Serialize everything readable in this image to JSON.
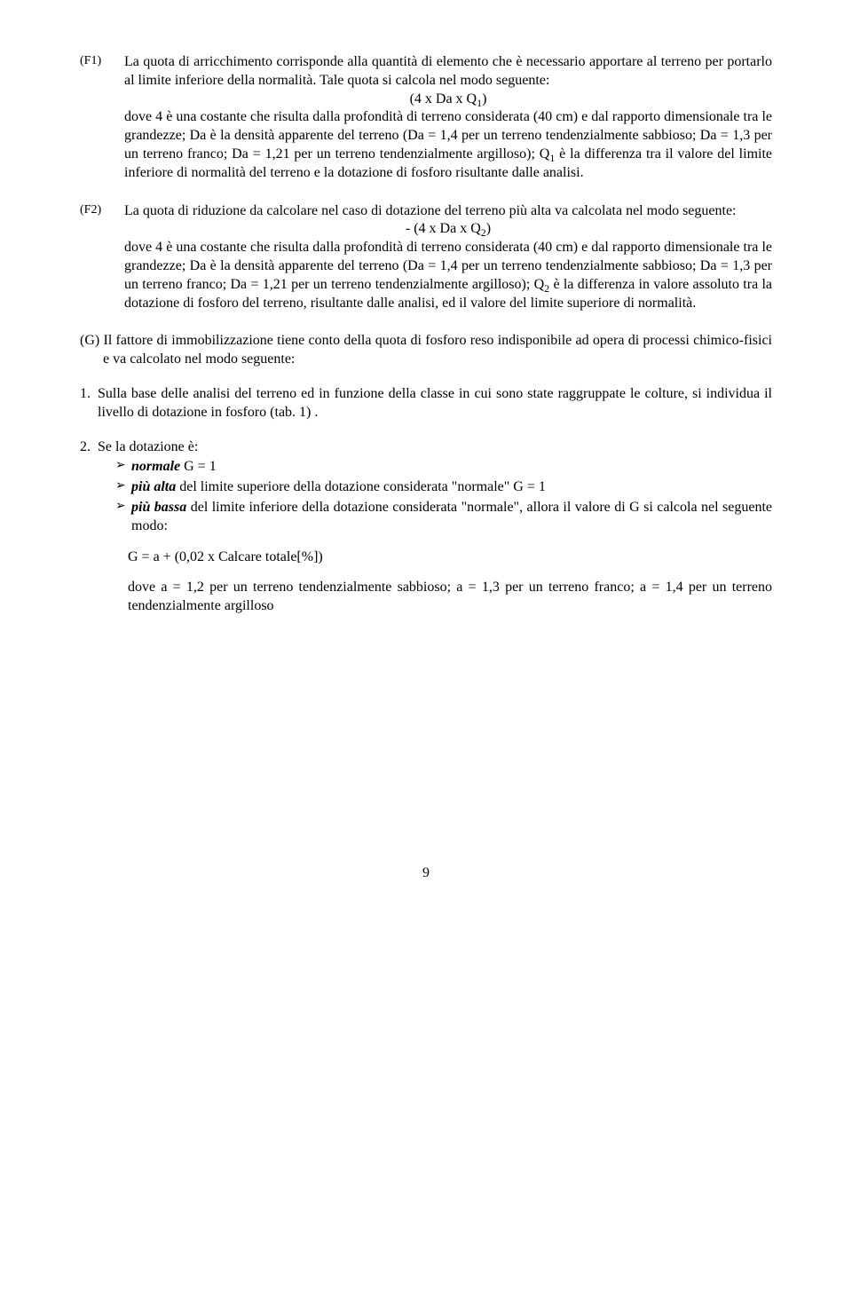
{
  "f1": {
    "label": "(F1)",
    "para1": "La quota di arricchimento corrisponde alla quantità di elemento che è necessario apportare al terreno per portarlo al limite inferiore della normalità. Tale quota si calcola nel modo seguente:",
    "formula_html": "(4 x Da x Q<sub>1</sub>)",
    "para2_html": "dove 4 è una costante che risulta dalla profondità di terreno considerata (40 cm) e dal rapporto dimensionale tra le grandezze; Da è la densità apparente del terreno (Da = 1,4 per un terreno tendenzialmente sabbioso; Da = 1,3 per un terreno franco; Da = 1,21 per un terreno tendenzialmente argilloso); Q<sub>1</sub> è la differenza tra il valore del limite inferiore di normalità del terreno e la dotazione di fosforo risultante dalle analisi."
  },
  "f2": {
    "label": "(F2)",
    "para1": "La quota di riduzione da calcolare nel caso di dotazione del terreno più alta va calcolata nel modo seguente:",
    "formula_html": "- (4 x Da x Q<sub>2</sub>)",
    "para2_html": "dove 4 è una costante che risulta dalla profondità di terreno considerata (40 cm) e dal rapporto dimensionale tra le grandezze; Da è la densità apparente del terreno (Da = 1,4 per un terreno tendenzialmente sabbioso; Da = 1,3 per un terreno franco; Da = 1,21 per un terreno tendenzialmente argilloso); Q<sub>2</sub> è la differenza in valore assoluto tra la dotazione di fosforo del terreno, risultante dalle analisi, ed il valore del limite superiore di normalità."
  },
  "g": {
    "intro": "(G) Il fattore di immobilizzazione tiene conto della quota di fosforo reso indisponibile ad opera di processi chimico-fisici e va calcolato nel modo seguente:",
    "item1": {
      "num": "1.",
      "text": "Sulla base delle analisi del terreno ed in funzione della classe in cui sono state raggruppate le colture, si individua il livello di dotazione in fosforo (tab. 1) ."
    },
    "item2": {
      "num": "2.",
      "lead": "Se la dotazione è:",
      "bullets": [
        {
          "html": "<b><i>normale</i></b> G = 1"
        },
        {
          "html": "<b><i>più alta</i></b> del limite superiore della dotazione considerata \"normale\" G = 1"
        },
        {
          "html": "<b><i>più bassa</i></b> del limite inferiore della dotazione considerata \"normale\", allora il valore di G si calcola nel seguente modo:"
        }
      ],
      "formula": "G = a + (0,02 x Calcare totale[%])",
      "final": "dove a = 1,2 per un terreno tendenzialmente sabbioso; a = 1,3 per un terreno franco; a = 1,4 per un terreno tendenzialmente argilloso"
    }
  },
  "page_number": "9",
  "bullet_glyph": "➢"
}
